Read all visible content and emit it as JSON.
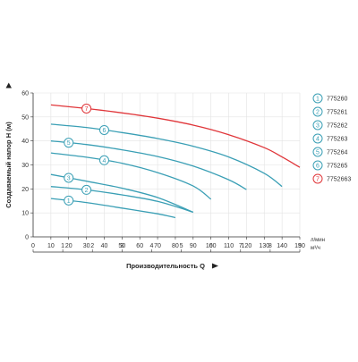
{
  "chart_data": {
    "type": "line",
    "ylabel": "Создаваемый напор H (м)",
    "xlabel": "Производительность Q",
    "x_unit_top": "л/мин",
    "x_unit_bottom": "м³/ч",
    "xlim": [
      0,
      150
    ],
    "ylim": [
      0,
      60
    ],
    "grid": true,
    "legend_position": "right",
    "y_ticks": [
      "0",
      "10",
      "20",
      "30",
      "40",
      "50",
      "60"
    ],
    "x_ticks_top": [
      "10",
      "20",
      "30",
      "40",
      "50",
      "60",
      "70",
      "80",
      "90",
      "100",
      "110",
      "120",
      "130",
      "140",
      "150"
    ],
    "x_ticks_bottom": [
      {
        "label": "0",
        "q": 0
      },
      {
        "label": "1",
        "q": 16.67
      },
      {
        "label": "2",
        "q": 33.33
      },
      {
        "label": "3",
        "q": 50
      },
      {
        "label": "4",
        "q": 66.67
      },
      {
        "label": "5",
        "q": 83.33
      },
      {
        "label": "6",
        "q": 100
      },
      {
        "label": "7",
        "q": 116.67
      },
      {
        "label": "8",
        "q": 133.33
      },
      {
        "label": "9",
        "q": 150
      }
    ],
    "series": [
      {
        "name": "775260",
        "badge": "1",
        "color": "#3a9fb5",
        "badge_at": 20,
        "points": [
          [
            10,
            16
          ],
          [
            30,
            14.3
          ],
          [
            50,
            12
          ],
          [
            70,
            9.6
          ],
          [
            80,
            8
          ]
        ]
      },
      {
        "name": "775261",
        "badge": "2",
        "color": "#3a9fb5",
        "badge_at": 30,
        "points": [
          [
            10,
            21
          ],
          [
            30,
            19.6
          ],
          [
            50,
            17.5
          ],
          [
            70,
            14.8
          ],
          [
            90,
            10.3
          ]
        ]
      },
      {
        "name": "775262",
        "badge": "3",
        "color": "#3a9fb5",
        "badge_at": 20,
        "points": [
          [
            10,
            26
          ],
          [
            30,
            23.2
          ],
          [
            50,
            20.3
          ],
          [
            70,
            16.4
          ],
          [
            90,
            10.3
          ]
        ]
      },
      {
        "name": "775263",
        "badge": "4",
        "color": "#3a9fb5",
        "badge_at": 40,
        "points": [
          [
            10,
            35
          ],
          [
            30,
            33.2
          ],
          [
            50,
            30.7
          ],
          [
            70,
            26.8
          ],
          [
            90,
            21.2
          ],
          [
            100,
            15.7
          ]
        ]
      },
      {
        "name": "775264",
        "badge": "5",
        "color": "#3a9fb5",
        "badge_at": 20,
        "points": [
          [
            10,
            40
          ],
          [
            30,
            38.5
          ],
          [
            50,
            36.3
          ],
          [
            70,
            33.5
          ],
          [
            90,
            29.5
          ],
          [
            110,
            23.8
          ],
          [
            120,
            19.7
          ]
        ]
      },
      {
        "name": "775265",
        "badge": "6",
        "color": "#3a9fb5",
        "badge_at": 40,
        "points": [
          [
            10,
            47
          ],
          [
            30,
            45.6
          ],
          [
            50,
            43.5
          ],
          [
            70,
            41
          ],
          [
            90,
            37.8
          ],
          [
            110,
            33.3
          ],
          [
            130,
            26.5
          ],
          [
            140,
            21
          ]
        ]
      },
      {
        "name": "7752663",
        "badge": "7",
        "color": "#e0363a",
        "badge_at": 30,
        "points": [
          [
            10,
            55
          ],
          [
            30,
            53.5
          ],
          [
            50,
            51.7
          ],
          [
            70,
            49.5
          ],
          [
            90,
            46.6
          ],
          [
            110,
            42.6
          ],
          [
            130,
            37.2
          ],
          [
            140,
            33.3
          ],
          [
            150,
            29
          ]
        ]
      }
    ]
  }
}
